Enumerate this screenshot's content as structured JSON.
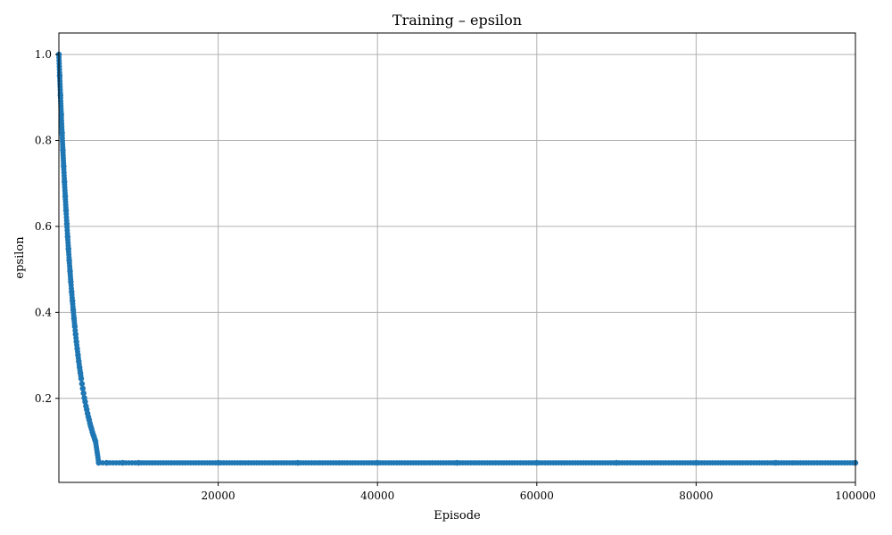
{
  "chart_data": {
    "type": "scatter",
    "title": "Training – epsilon",
    "xlabel": "Episode",
    "ylabel": "epsilon",
    "xlim": [
      0,
      100000
    ],
    "ylim": [
      0.0045,
      1.05
    ],
    "xticks": [
      20000,
      40000,
      60000,
      80000,
      100000
    ],
    "xtick_labels": [
      "20000",
      "40000",
      "60000",
      "80000",
      "100000"
    ],
    "yticks": [
      0.2,
      0.4,
      0.6,
      0.8,
      1.0
    ],
    "ytick_labels": [
      "0.2",
      "0.4",
      "0.6",
      "0.8",
      "1.0"
    ],
    "grid": true,
    "legend": "none",
    "marker_color": "#1f77b4",
    "series": [
      {
        "x": [
          0,
          100,
          200,
          300,
          400,
          500,
          600,
          700,
          800,
          900,
          1000,
          1100,
          1200,
          1300,
          1400,
          1500,
          1600,
          1700,
          1800,
          1900,
          2000,
          2100,
          2200,
          2300,
          2400,
          2500,
          2600,
          2700,
          2800,
          2900,
          3000,
          3100,
          3200,
          3300,
          3400,
          3500,
          3600,
          3700,
          3800,
          3900,
          4000,
          4100,
          4200,
          4300,
          4400,
          4500,
          4600,
          5000,
          6000,
          8000,
          10000,
          20000,
          30000,
          40000,
          50000,
          60000,
          70000,
          80000,
          90000,
          100000
        ],
        "y": [
          1.0,
          0.951,
          0.905,
          0.86,
          0.818,
          0.778,
          0.74,
          0.704,
          0.67,
          0.637,
          0.606,
          0.576,
          0.548,
          0.521,
          0.496,
          0.471,
          0.448,
          0.427,
          0.406,
          0.386,
          0.367,
          0.349,
          0.332,
          0.316,
          0.301,
          0.286,
          0.272,
          0.259,
          0.246,
          0.234,
          0.223,
          0.212,
          0.201,
          0.192,
          0.182,
          0.174,
          0.165,
          0.157,
          0.15,
          0.142,
          0.135,
          0.129,
          0.122,
          0.116,
          0.111,
          0.105,
          0.1,
          0.05,
          0.05,
          0.05,
          0.05,
          0.05,
          0.05,
          0.05,
          0.05,
          0.05,
          0.05,
          0.05,
          0.05,
          0.05
        ]
      }
    ]
  }
}
